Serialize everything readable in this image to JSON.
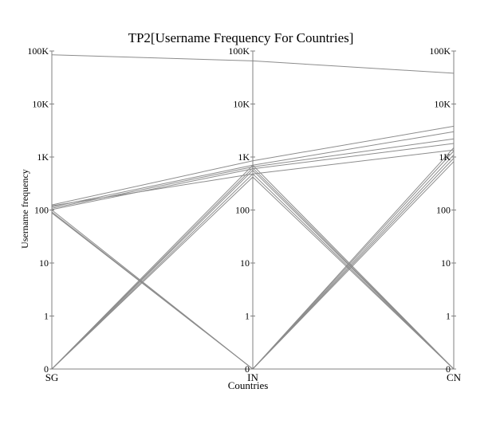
{
  "chart_data": {
    "type": "parallel-coordinates",
    "title": "TP2[Username Frequency For Countries]",
    "xlabel": "Countries",
    "ylabel": "Username frequency",
    "y_scale": "log",
    "y_ticks": [
      "0",
      "1",
      "10",
      "100",
      "1K",
      "10K",
      "100K"
    ],
    "axes": [
      "SG",
      "IN",
      "CN"
    ],
    "series": [
      {
        "values": [
          85000,
          65000,
          38000
        ]
      },
      {
        "values": [
          125,
          850,
          3800
        ]
      },
      {
        "values": [
          115,
          700,
          3000
        ]
      },
      {
        "values": [
          108,
          650,
          2200
        ]
      },
      {
        "values": [
          102,
          600,
          1800
        ]
      },
      {
        "values": [
          120,
          480,
          1350
        ]
      },
      {
        "values": [
          100,
          0,
          0
        ]
      },
      {
        "values": [
          92,
          0,
          0
        ]
      },
      {
        "values": [
          88,
          0,
          0
        ]
      },
      {
        "values": [
          0,
          700,
          0
        ]
      },
      {
        "values": [
          0,
          620,
          0
        ]
      },
      {
        "values": [
          0,
          560,
          0
        ]
      },
      {
        "values": [
          0,
          480,
          0
        ]
      },
      {
        "values": [
          0,
          420,
          0
        ]
      },
      {
        "values": [
          0,
          0,
          1500
        ]
      },
      {
        "values": [
          0,
          0,
          1300
        ]
      },
      {
        "values": [
          0,
          0,
          1100
        ]
      },
      {
        "values": [
          0,
          0,
          950
        ]
      },
      {
        "values": [
          0,
          0,
          820
        ]
      }
    ]
  }
}
